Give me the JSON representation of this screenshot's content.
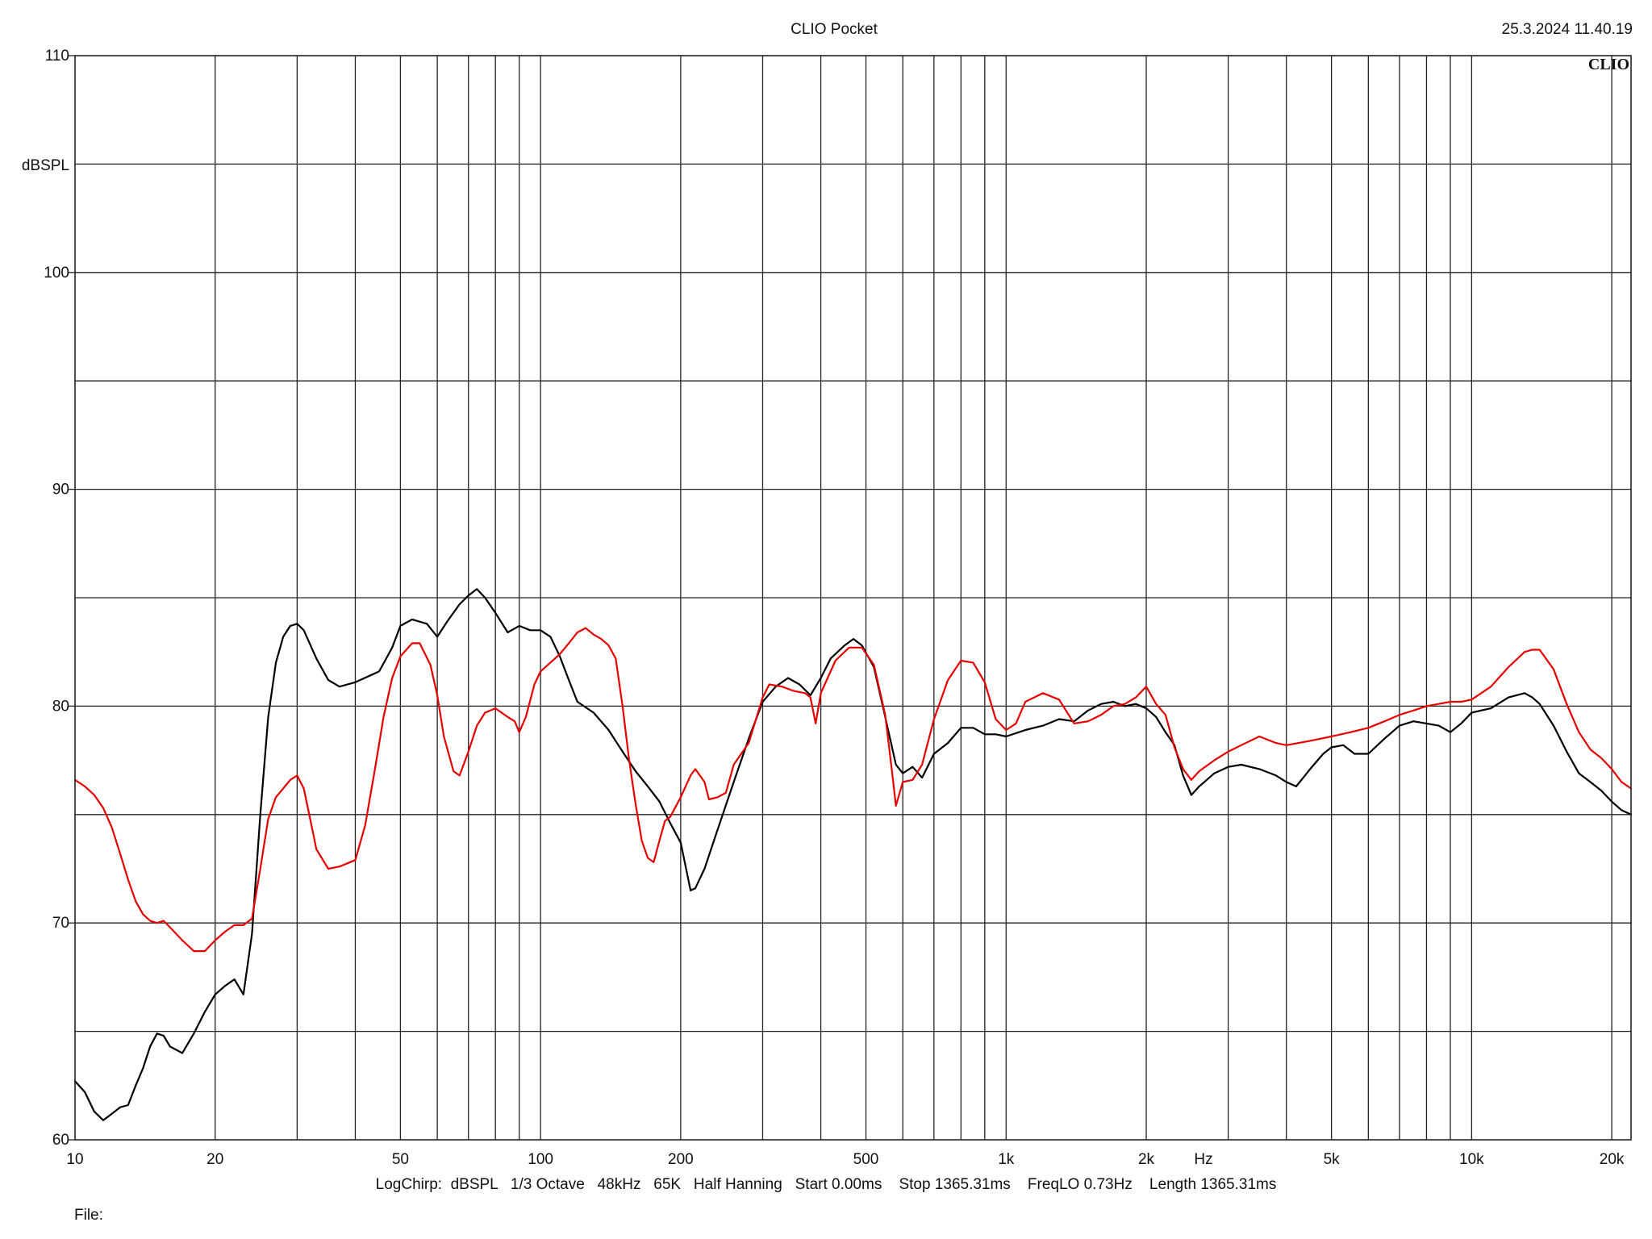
{
  "header": {
    "title": "CLIO Pocket",
    "timestamp": "25.3.2024 11.40.19",
    "logo_text": "CLIO"
  },
  "footer": {
    "settings": "LogChirp:  dBSPL   1/3 Octave   48kHz   65K   Half Hanning   Start 0.00ms    Stop 1365.31ms    FreqLO 0.73Hz    Length 1365.31ms",
    "file_label": "File:"
  },
  "chart_data": {
    "type": "line",
    "title": "CLIO Pocket",
    "xlabel": "Hz",
    "ylabel": "dBSPL",
    "xscale": "log",
    "xlim": [
      10,
      22000
    ],
    "ylim": [
      60,
      110
    ],
    "grid": true,
    "y_ticks": [
      60,
      70,
      80,
      90,
      100,
      110
    ],
    "x_tick_labels": [
      {
        "value": 10,
        "label": "10"
      },
      {
        "value": 20,
        "label": "20"
      },
      {
        "value": 50,
        "label": "50"
      },
      {
        "value": 100,
        "label": "100"
      },
      {
        "value": 200,
        "label": "200"
      },
      {
        "value": 500,
        "label": "500"
      },
      {
        "value": 1000,
        "label": "1k"
      },
      {
        "value": 2000,
        "label": "2k"
      },
      {
        "value": 5000,
        "label": "5k"
      },
      {
        "value": 10000,
        "label": "10k"
      },
      {
        "value": 20000,
        "label": "20k"
      }
    ],
    "series": [
      {
        "color": "#000000",
        "points": [
          [
            10,
            62.7
          ],
          [
            10.5,
            62.2
          ],
          [
            11,
            61.3
          ],
          [
            11.5,
            60.9
          ],
          [
            12,
            61.2
          ],
          [
            12.5,
            61.5
          ],
          [
            13,
            61.6
          ],
          [
            13.5,
            62.5
          ],
          [
            14,
            63.3
          ],
          [
            14.5,
            64.3
          ],
          [
            15,
            64.9
          ],
          [
            15.5,
            64.8
          ],
          [
            16,
            64.3
          ],
          [
            17,
            64
          ],
          [
            18,
            64.9
          ],
          [
            19,
            65.9
          ],
          [
            20,
            66.7
          ],
          [
            21,
            67.1
          ],
          [
            22,
            67.4
          ],
          [
            23,
            66.7
          ],
          [
            24,
            69.5
          ],
          [
            25,
            75
          ],
          [
            26,
            79.5
          ],
          [
            27,
            82
          ],
          [
            28,
            83.2
          ],
          [
            29,
            83.7
          ],
          [
            30,
            83.8
          ],
          [
            31,
            83.5
          ],
          [
            33,
            82.2
          ],
          [
            35,
            81.2
          ],
          [
            37,
            80.9
          ],
          [
            40,
            81.1
          ],
          [
            45,
            81.6
          ],
          [
            48,
            82.7
          ],
          [
            50,
            83.7
          ],
          [
            53,
            84
          ],
          [
            57,
            83.8
          ],
          [
            60,
            83.2
          ],
          [
            63,
            83.9
          ],
          [
            67,
            84.7
          ],
          [
            70,
            85.1
          ],
          [
            73,
            85.4
          ],
          [
            76,
            85
          ],
          [
            80,
            84.3
          ],
          [
            85,
            83.4
          ],
          [
            90,
            83.7
          ],
          [
            95,
            83.5
          ],
          [
            100,
            83.5
          ],
          [
            105,
            83.2
          ],
          [
            110,
            82.3
          ],
          [
            115,
            81.2
          ],
          [
            120,
            80.2
          ],
          [
            130,
            79.7
          ],
          [
            140,
            78.9
          ],
          [
            150,
            77.9
          ],
          [
            160,
            77
          ],
          [
            170,
            76.3
          ],
          [
            180,
            75.6
          ],
          [
            190,
            74.6
          ],
          [
            200,
            73.7
          ],
          [
            210,
            71.5
          ],
          [
            215,
            71.6
          ],
          [
            225,
            72.5
          ],
          [
            240,
            74.3
          ],
          [
            260,
            76.5
          ],
          [
            280,
            78.5
          ],
          [
            300,
            80.2
          ],
          [
            320,
            80.9
          ],
          [
            340,
            81.3
          ],
          [
            360,
            81
          ],
          [
            380,
            80.5
          ],
          [
            400,
            81.3
          ],
          [
            420,
            82.2
          ],
          [
            450,
            82.8
          ],
          [
            470,
            83.1
          ],
          [
            490,
            82.8
          ],
          [
            520,
            81.8
          ],
          [
            550,
            79.5
          ],
          [
            580,
            77.3
          ],
          [
            600,
            76.9
          ],
          [
            630,
            77.2
          ],
          [
            660,
            76.7
          ],
          [
            700,
            77.8
          ],
          [
            750,
            78.3
          ],
          [
            800,
            79
          ],
          [
            850,
            79
          ],
          [
            900,
            78.7
          ],
          [
            950,
            78.7
          ],
          [
            1000,
            78.6
          ],
          [
            1100,
            78.9
          ],
          [
            1200,
            79.1
          ],
          [
            1300,
            79.4
          ],
          [
            1400,
            79.3
          ],
          [
            1500,
            79.8
          ],
          [
            1600,
            80.1
          ],
          [
            1700,
            80.2
          ],
          [
            1800,
            80
          ],
          [
            1900,
            80.1
          ],
          [
            2000,
            79.9
          ],
          [
            2100,
            79.5
          ],
          [
            2200,
            78.8
          ],
          [
            2300,
            78.2
          ],
          [
            2400,
            76.8
          ],
          [
            2500,
            75.9
          ],
          [
            2600,
            76.3
          ],
          [
            2800,
            76.9
          ],
          [
            3000,
            77.2
          ],
          [
            3200,
            77.3
          ],
          [
            3500,
            77.1
          ],
          [
            3800,
            76.8
          ],
          [
            4000,
            76.5
          ],
          [
            4200,
            76.3
          ],
          [
            4500,
            77.1
          ],
          [
            4800,
            77.8
          ],
          [
            5000,
            78.1
          ],
          [
            5300,
            78.2
          ],
          [
            5600,
            77.8
          ],
          [
            6000,
            77.8
          ],
          [
            6500,
            78.5
          ],
          [
            7000,
            79.1
          ],
          [
            7500,
            79.3
          ],
          [
            8000,
            79.2
          ],
          [
            8500,
            79.1
          ],
          [
            9000,
            78.8
          ],
          [
            9500,
            79.2
          ],
          [
            10000,
            79.7
          ],
          [
            11000,
            79.9
          ],
          [
            12000,
            80.4
          ],
          [
            13000,
            80.6
          ],
          [
            13500,
            80.4
          ],
          [
            14000,
            80.1
          ],
          [
            15000,
            79.1
          ],
          [
            16000,
            77.9
          ],
          [
            17000,
            76.9
          ],
          [
            18000,
            76.5
          ],
          [
            19000,
            76.1
          ],
          [
            20000,
            75.6
          ],
          [
            21000,
            75.2
          ],
          [
            22000,
            75
          ]
        ]
      },
      {
        "color": "#e60000",
        "points": [
          [
            10,
            76.6
          ],
          [
            10.5,
            76.3
          ],
          [
            11,
            75.9
          ],
          [
            11.5,
            75.3
          ],
          [
            12,
            74.4
          ],
          [
            12.5,
            73.2
          ],
          [
            13,
            72
          ],
          [
            13.5,
            71
          ],
          [
            14,
            70.4
          ],
          [
            14.5,
            70.1
          ],
          [
            15,
            70
          ],
          [
            15.5,
            70.1
          ],
          [
            16,
            69.8
          ],
          [
            17,
            69.2
          ],
          [
            18,
            68.7
          ],
          [
            19,
            68.7
          ],
          [
            20,
            69.2
          ],
          [
            21,
            69.6
          ],
          [
            22,
            69.9
          ],
          [
            23,
            69.9
          ],
          [
            24,
            70.2
          ],
          [
            25,
            72.5
          ],
          [
            26,
            74.8
          ],
          [
            27,
            75.8
          ],
          [
            28,
            76.2
          ],
          [
            29,
            76.6
          ],
          [
            30,
            76.8
          ],
          [
            31,
            76.2
          ],
          [
            32,
            74.8
          ],
          [
            33,
            73.4
          ],
          [
            35,
            72.5
          ],
          [
            37,
            72.6
          ],
          [
            40,
            72.9
          ],
          [
            42,
            74.5
          ],
          [
            44,
            77
          ],
          [
            46,
            79.5
          ],
          [
            48,
            81.3
          ],
          [
            50,
            82.3
          ],
          [
            53,
            82.9
          ],
          [
            55,
            82.9
          ],
          [
            58,
            81.9
          ],
          [
            60,
            80.5
          ],
          [
            62,
            78.6
          ],
          [
            65,
            77
          ],
          [
            67,
            76.8
          ],
          [
            70,
            77.9
          ],
          [
            73,
            79.1
          ],
          [
            76,
            79.7
          ],
          [
            80,
            79.9
          ],
          [
            85,
            79.5
          ],
          [
            88,
            79.3
          ],
          [
            90,
            78.8
          ],
          [
            93,
            79.5
          ],
          [
            97,
            81
          ],
          [
            100,
            81.6
          ],
          [
            110,
            82.4
          ],
          [
            115,
            82.9
          ],
          [
            120,
            83.4
          ],
          [
            125,
            83.6
          ],
          [
            130,
            83.3
          ],
          [
            135,
            83.1
          ],
          [
            140,
            82.8
          ],
          [
            145,
            82.2
          ],
          [
            150,
            80
          ],
          [
            155,
            77.5
          ],
          [
            160,
            75.5
          ],
          [
            165,
            73.8
          ],
          [
            170,
            73
          ],
          [
            175,
            72.8
          ],
          [
            180,
            73.8
          ],
          [
            185,
            74.7
          ],
          [
            190,
            74.9
          ],
          [
            200,
            75.8
          ],
          [
            210,
            76.8
          ],
          [
            215,
            77.1
          ],
          [
            225,
            76.5
          ],
          [
            230,
            75.7
          ],
          [
            240,
            75.8
          ],
          [
            250,
            76
          ],
          [
            260,
            77.3
          ],
          [
            280,
            78.3
          ],
          [
            300,
            80.4
          ],
          [
            310,
            81
          ],
          [
            330,
            80.9
          ],
          [
            350,
            80.7
          ],
          [
            370,
            80.6
          ],
          [
            380,
            80.4
          ],
          [
            390,
            79.2
          ],
          [
            400,
            80.6
          ],
          [
            430,
            82.1
          ],
          [
            460,
            82.7
          ],
          [
            490,
            82.7
          ],
          [
            520,
            81.9
          ],
          [
            550,
            79.6
          ],
          [
            570,
            76.8
          ],
          [
            580,
            75.4
          ],
          [
            600,
            76.5
          ],
          [
            630,
            76.6
          ],
          [
            660,
            77.3
          ],
          [
            700,
            79.4
          ],
          [
            750,
            81.2
          ],
          [
            800,
            82.1
          ],
          [
            850,
            82
          ],
          [
            900,
            81.1
          ],
          [
            950,
            79.4
          ],
          [
            1000,
            78.9
          ],
          [
            1050,
            79.2
          ],
          [
            1100,
            80.2
          ],
          [
            1200,
            80.6
          ],
          [
            1300,
            80.3
          ],
          [
            1400,
            79.2
          ],
          [
            1500,
            79.3
          ],
          [
            1600,
            79.6
          ],
          [
            1700,
            80
          ],
          [
            1800,
            80.1
          ],
          [
            1900,
            80.4
          ],
          [
            2000,
            80.9
          ],
          [
            2100,
            80.1
          ],
          [
            2200,
            79.6
          ],
          [
            2300,
            78.1
          ],
          [
            2400,
            77.1
          ],
          [
            2500,
            76.6
          ],
          [
            2600,
            77
          ],
          [
            2800,
            77.5
          ],
          [
            3000,
            77.9
          ],
          [
            3200,
            78.2
          ],
          [
            3500,
            78.6
          ],
          [
            3800,
            78.3
          ],
          [
            4000,
            78.2
          ],
          [
            4500,
            78.4
          ],
          [
            5000,
            78.6
          ],
          [
            5500,
            78.8
          ],
          [
            6000,
            79
          ],
          [
            6500,
            79.3
          ],
          [
            7000,
            79.6
          ],
          [
            7500,
            79.8
          ],
          [
            8000,
            80
          ],
          [
            8500,
            80.1
          ],
          [
            9000,
            80.2
          ],
          [
            9500,
            80.2
          ],
          [
            10000,
            80.3
          ],
          [
            11000,
            80.9
          ],
          [
            12000,
            81.8
          ],
          [
            13000,
            82.5
          ],
          [
            13500,
            82.6
          ],
          [
            14000,
            82.6
          ],
          [
            15000,
            81.7
          ],
          [
            16000,
            80.1
          ],
          [
            17000,
            78.8
          ],
          [
            18000,
            78
          ],
          [
            19000,
            77.6
          ],
          [
            20000,
            77.1
          ],
          [
            21000,
            76.5
          ],
          [
            22000,
            76.2
          ]
        ]
      }
    ]
  }
}
